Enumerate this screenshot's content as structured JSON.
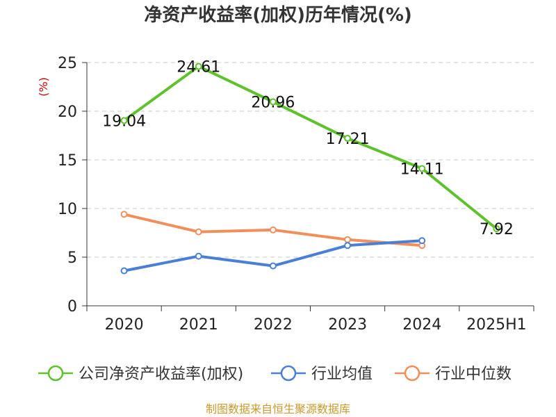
{
  "chart_data": {
    "type": "line",
    "title": "净资产收益率(加权)历年情况(%)",
    "ylabel": "(%)",
    "categories": [
      "2020",
      "2021",
      "2022",
      "2023",
      "2024",
      "2025H1"
    ],
    "yticks": [
      "0",
      "5",
      "10",
      "15",
      "20",
      "25"
    ],
    "ylim": [
      0,
      25
    ],
    "grid": true,
    "legend_position": "bottom",
    "series": [
      {
        "name": "公司净资产收益率(加权)",
        "color": "#5ec22a",
        "values": [
          19.04,
          24.61,
          20.96,
          17.21,
          14.11,
          7.92
        ],
        "labels": [
          "19.04",
          "24.61",
          "20.96",
          "17.21",
          "14.11",
          "7.92"
        ]
      },
      {
        "name": "行业均值",
        "color": "#4a7fd8",
        "values": [
          3.6,
          5.1,
          4.1,
          6.2,
          6.7,
          null
        ]
      },
      {
        "name": "行业中位数",
        "color": "#f28e5a",
        "values": [
          9.4,
          7.6,
          7.8,
          6.8,
          6.2,
          null
        ]
      }
    ]
  },
  "source": "制图数据来自恒生聚源数据库"
}
